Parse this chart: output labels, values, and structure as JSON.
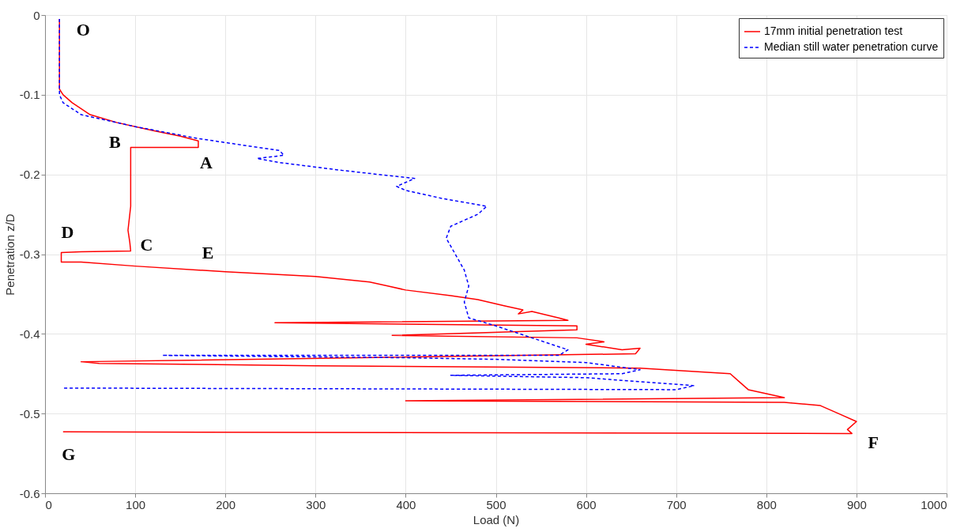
{
  "chart_data": {
    "type": "line",
    "xlabel": "Load (N)",
    "ylabel": "Penetration z/D",
    "xlim": [
      0,
      1000
    ],
    "xticks": [
      0,
      100,
      200,
      300,
      400,
      500,
      600,
      700,
      800,
      900,
      1000
    ],
    "ylim": [
      -0.6,
      0
    ],
    "yticks": [
      -0.6,
      -0.5,
      -0.4,
      -0.3,
      -0.2,
      -0.1,
      0
    ],
    "grid": true,
    "legend": "top right",
    "marker": "none",
    "series": [
      {
        "name": "17mm initial penetration test",
        "color": "#ff0000",
        "line_style": "solid",
        "x": [
          16,
          16,
          20,
          30,
          50,
          80,
          120,
          150,
          170,
          170,
          95,
          95,
          92,
          94,
          95,
          40,
          18,
          18,
          40,
          100,
          200,
          300,
          360,
          380,
          400,
          450,
          480,
          510,
          530,
          525,
          540,
          570,
          580,
          255,
          590,
          590,
          385,
          590,
          620,
          600,
          640,
          660,
          655,
          40,
          60,
          300,
          660,
          760,
          770,
          780,
          800,
          820,
          400,
          820,
          860,
          880,
          900,
          890,
          895,
          20
        ],
        "values": [
          -0.005,
          -0.093,
          -0.1,
          -0.11,
          -0.125,
          -0.135,
          -0.145,
          -0.152,
          -0.158,
          -0.166,
          -0.166,
          -0.24,
          -0.27,
          -0.285,
          -0.296,
          -0.297,
          -0.298,
          -0.31,
          -0.31,
          -0.315,
          -0.322,
          -0.328,
          -0.335,
          -0.34,
          -0.345,
          -0.352,
          -0.357,
          -0.365,
          -0.37,
          -0.375,
          -0.372,
          -0.38,
          -0.383,
          -0.386,
          -0.39,
          -0.395,
          -0.402,
          -0.405,
          -0.41,
          -0.413,
          -0.42,
          -0.418,
          -0.425,
          -0.435,
          -0.437,
          -0.44,
          -0.443,
          -0.45,
          -0.46,
          -0.47,
          -0.475,
          -0.48,
          -0.484,
          -0.486,
          -0.49,
          -0.5,
          -0.51,
          -0.52,
          -0.525,
          -0.523
        ]
      },
      {
        "name": "Median still water penetration curve",
        "color": "#0000ff",
        "line_style": "dashed",
        "x": [
          16,
          16,
          20,
          40,
          100,
          170,
          260,
          265,
          235,
          260,
          330,
          410,
          390,
          400,
          440,
          490,
          480,
          450,
          445,
          455,
          465,
          470,
          465,
          470,
          500,
          540,
          580,
          570,
          130,
          400,
          500,
          600,
          660,
          640,
          450,
          600,
          720,
          700,
          20
        ],
        "values": [
          -0.005,
          -0.1,
          -0.11,
          -0.125,
          -0.14,
          -0.155,
          -0.17,
          -0.176,
          -0.18,
          -0.185,
          -0.195,
          -0.205,
          -0.215,
          -0.22,
          -0.23,
          -0.24,
          -0.25,
          -0.265,
          -0.28,
          -0.3,
          -0.32,
          -0.34,
          -0.36,
          -0.38,
          -0.39,
          -0.405,
          -0.42,
          -0.427,
          -0.427,
          -0.43,
          -0.432,
          -0.436,
          -0.445,
          -0.45,
          -0.452,
          -0.455,
          -0.465,
          -0.47,
          -0.468
        ]
      }
    ],
    "annotations": [
      {
        "text": "O",
        "x": 16,
        "y": -0.005
      },
      {
        "text": "A",
        "x": 170,
        "y": -0.166
      },
      {
        "text": "B",
        "x": 95,
        "y": -0.166
      },
      {
        "text": "C",
        "x": 95,
        "y": -0.296
      },
      {
        "text": "D",
        "x": 18,
        "y": -0.298
      },
      {
        "text": "E",
        "x": 200,
        "y": -0.322
      },
      {
        "text": "F",
        "x": 895,
        "y": -0.525
      },
      {
        "text": "G",
        "x": 20,
        "y": -0.523
      }
    ]
  }
}
